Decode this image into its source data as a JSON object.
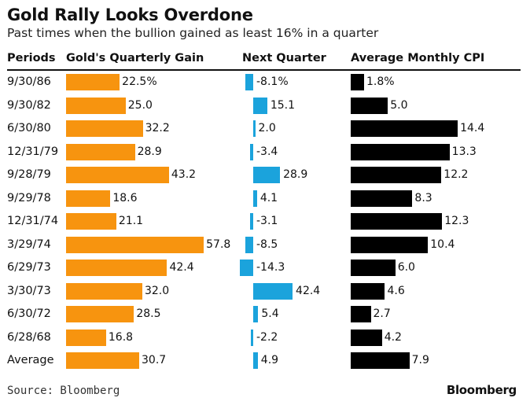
{
  "title": "Gold Rally Looks Overdone",
  "subtitle": "Past times when the bullion gained as least 16% in a quarter",
  "headers": {
    "periods": "Periods",
    "gain": "Gold's Quarterly Gain",
    "next": "Next Quarter",
    "cpi": "Average Monthly CPI"
  },
  "source": "Source: Bloomberg",
  "brand": "Bloomberg",
  "colors": {
    "gain": "#f7940f",
    "next": "#1ba3dc",
    "cpi": "#000000"
  },
  "chart_data": {
    "type": "bar",
    "categories": [
      "9/30/86",
      "9/30/82",
      "6/30/80",
      "12/31/79",
      "9/28/79",
      "9/29/78",
      "12/31/74",
      "3/29/74",
      "6/29/73",
      "3/30/73",
      "6/30/72",
      "6/28/68",
      "Average"
    ],
    "series": [
      {
        "name": "Gold's Quarterly Gain",
        "values": [
          22.5,
          25.0,
          32.2,
          28.9,
          43.2,
          18.6,
          21.1,
          57.8,
          42.4,
          32.0,
          28.5,
          16.8,
          30.7
        ],
        "labels": [
          "22.5%",
          "25.0",
          "32.2",
          "28.9",
          "43.2",
          "18.6",
          "21.1",
          "57.8",
          "42.4",
          "32.0",
          "28.5",
          "16.8",
          "30.7"
        ]
      },
      {
        "name": "Next Quarter",
        "values": [
          -8.1,
          15.1,
          2.0,
          -3.4,
          28.9,
          4.1,
          -3.1,
          -8.5,
          -14.3,
          42.4,
          5.4,
          -2.2,
          4.9
        ],
        "labels": [
          "-8.1%",
          "15.1",
          "2.0",
          "-3.4",
          "28.9",
          "4.1",
          "-3.1",
          "-8.5",
          "-14.3",
          "42.4",
          "5.4",
          "-2.2",
          "4.9"
        ]
      },
      {
        "name": "Average Monthly CPI",
        "values": [
          1.8,
          5.0,
          14.4,
          13.3,
          12.2,
          8.3,
          12.3,
          10.4,
          6.0,
          4.6,
          2.7,
          4.2,
          7.9
        ],
        "labels": [
          "1.8%",
          "5.0",
          "14.4",
          "13.3",
          "12.2",
          "8.3",
          "12.3",
          "10.4",
          "6.0",
          "4.6",
          "2.7",
          "4.2",
          "7.9"
        ]
      }
    ]
  }
}
